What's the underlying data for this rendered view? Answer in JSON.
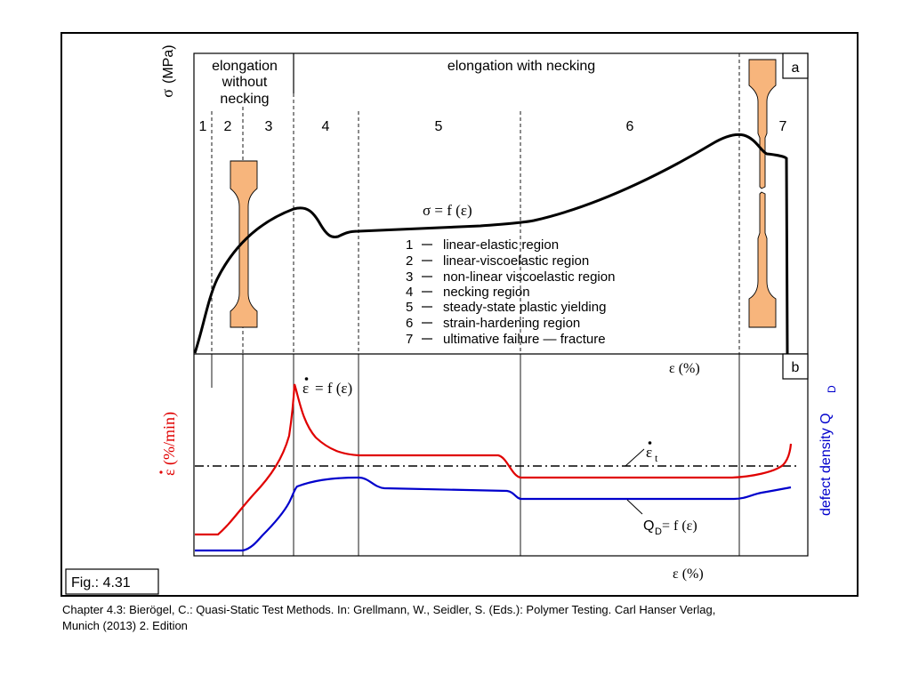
{
  "figure_label": "Fig.: 4.31",
  "panel_a_tag": "a",
  "panel_b_tag": "b",
  "header": {
    "left_line1": "elongation",
    "left_line2": "without",
    "left_line3": "necking",
    "right": "elongation with necking"
  },
  "zones": [
    "1",
    "2",
    "3",
    "4",
    "5",
    "6",
    "7"
  ],
  "axes": {
    "top_y_sigma": "σ",
    "top_y_unit": "(MPa)",
    "strain_label": "ε (%)",
    "bottom_left_label": "ε (%/min)",
    "bottom_right_label": "defect density Q",
    "bottom_right_sub": "D"
  },
  "curve_labels": {
    "stress": "σ = f (ε)",
    "rate": "= f (ε)",
    "rate_eps": "ε",
    "threshold": "ε",
    "threshold_sub": "t",
    "defect": "Q",
    "defect_sub": "D",
    "defect_rest": " = f (ε)"
  },
  "legend": [
    {
      "num": "1",
      "text": "linear-elastic region"
    },
    {
      "num": "2",
      "text": "linear-viscoelastic region"
    },
    {
      "num": "3",
      "text": "non-linear viscoelastic region"
    },
    {
      "num": "4",
      "text": "necking region"
    },
    {
      "num": "5",
      "text": "steady-state plastic yielding"
    },
    {
      "num": "6",
      "text": "strain-hardening region"
    },
    {
      "num": "7",
      "text": "ultimative failure — fracture"
    }
  ],
  "colors": {
    "stress_curve": "#000000",
    "rate_curve": "#e00000",
    "defect_curve": "#0000cc",
    "specimen_fill": "#f7b57c",
    "rate_label": "#e00000",
    "defect_label": "#0000cc"
  },
  "caption": {
    "line1": "Chapter 4.3: Bierögel, C.: Quasi-Static Test Methods. In: Grellmann, W., Seidler, S. (Eds.): Polymer Testing. Carl Hanser Verlag,",
    "line2": "Munich (2013) 2. Edition"
  }
}
